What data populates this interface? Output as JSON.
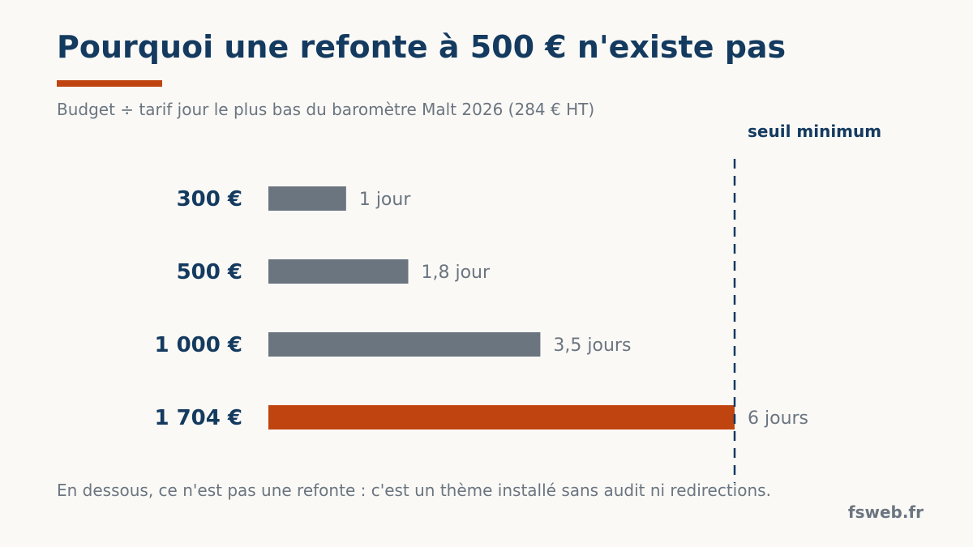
{
  "title": "Pourquoi une refonte à 500 € n'existe pas",
  "subtitle": "Budget ÷ tarif jour le plus bas du baromètre Malt 2026 (284 € HT)",
  "footer_note": "En dessous, ce n'est pas une refonte : c'est un thème installé sans audit ni redirections.",
  "brand": "fsweb.fr",
  "colors": {
    "title": "#143a5f",
    "accent": "#c0440f",
    "bar_default": "#6b7580",
    "text_muted": "#6b7580",
    "background": "#faf9f6"
  },
  "chart_data": {
    "type": "bar",
    "orientation": "horizontal",
    "categories": [
      "300 €",
      "500 €",
      "1 000 €",
      "1 704 €"
    ],
    "budgets": [
      300,
      500,
      1000,
      1704
    ],
    "values": [
      1,
      1.8,
      3.5,
      6
    ],
    "value_labels": [
      "1 jour",
      "1,8 jour",
      "3,5 jours",
      "6 jours"
    ],
    "highlight_index": 3,
    "threshold": {
      "value": 6,
      "label": "seuil minimum",
      "style": "dashed"
    },
    "xlim": [
      0,
      6
    ],
    "grid": false,
    "title": "Pourquoi une refonte à 500 € n'existe pas",
    "xlabel": "",
    "ylabel": ""
  }
}
